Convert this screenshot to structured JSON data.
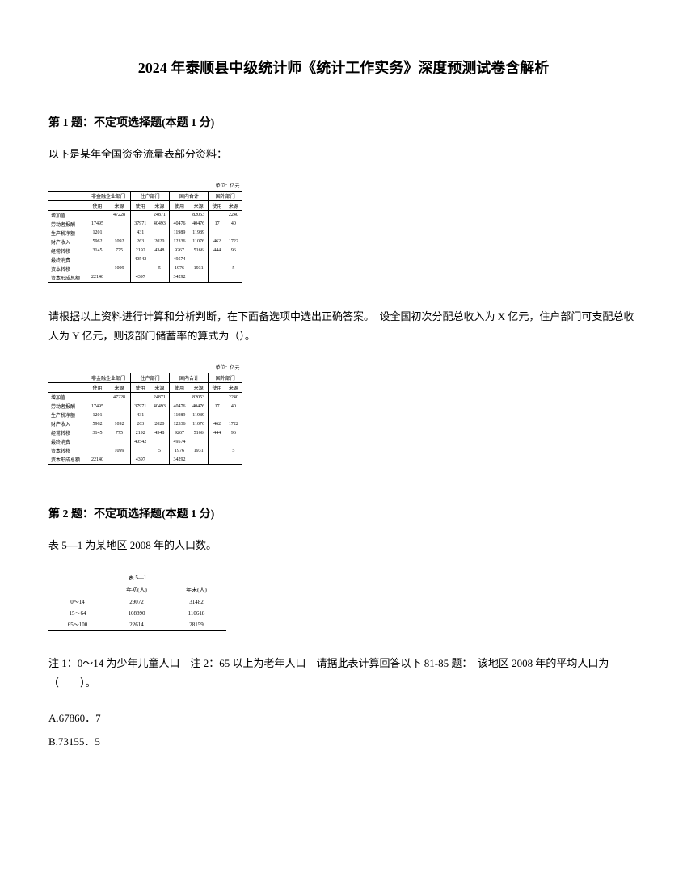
{
  "title": "2024 年泰顺县中级统计师《统计工作实务》深度预测试卷含解析",
  "q1": {
    "header": "第 1 题：不定项选择题(本题 1 分)",
    "intro": "以下是某年全国资金流量表部分资料：",
    "instruction": "请根据以上资料进行计算和分析判断，在下面备选项中选出正确答案。　设全国初次分配总收入为 X 亿元，住户部门可支配总收人为 Y 亿元，则该部门储蓄率的算式为（）。",
    "table": {
      "unit": "单位：亿元",
      "groups": [
        "非金融企业部门",
        "住户部门",
        "国内合计",
        "国外部门"
      ],
      "subheaders": [
        "使用",
        "来源",
        "使用",
        "来源",
        "使用",
        "来源",
        "使用",
        "来源"
      ],
      "rows": [
        {
          "label": "增加值",
          "cells": [
            "",
            "47228",
            "",
            "24871",
            "",
            "82053",
            "",
            "2240"
          ]
        },
        {
          "label": "劳动者报酬",
          "cells": [
            "17495",
            "",
            "37971",
            "40493",
            "40476",
            "40476",
            "17",
            "40"
          ]
        },
        {
          "label": "生产税净额",
          "cells": [
            "1201",
            "",
            "431",
            "",
            "11989",
            "11989",
            "",
            ""
          ]
        },
        {
          "label": "财产收入",
          "cells": [
            "5962",
            "1092",
            "263",
            "2020",
            "12336",
            "11076",
            "462",
            "1722"
          ]
        },
        {
          "label": "经常转移",
          "cells": [
            "3145",
            "775",
            "2192",
            "4348",
            "9267",
            "5166",
            "444",
            "96"
          ]
        },
        {
          "label": "最终消费",
          "cells": [
            "",
            "",
            "40542",
            "",
            "49574",
            "",
            "",
            ""
          ]
        },
        {
          "label": "资本转移",
          "cells": [
            "",
            "1099",
            "",
            "5",
            "1976",
            "1931",
            "",
            "5"
          ]
        },
        {
          "label": "资本形成总额",
          "cells": [
            "22140",
            "",
            "4397",
            "",
            "34292",
            "",
            "",
            ""
          ]
        }
      ]
    }
  },
  "q2": {
    "header": "第 2 题：不定项选择题(本题 1 分)",
    "intro": "表 5—1 为某地区 2008 年的人口数。",
    "table": {
      "caption": "表 5—1",
      "headers": [
        "",
        "年初(人)",
        "年末(人)"
      ],
      "rows": [
        {
          "label": "0～14",
          "cells": [
            "29072",
            "31482"
          ]
        },
        {
          "label": "15～64",
          "cells": [
            "108890",
            "110618"
          ]
        },
        {
          "label": "65～100",
          "cells": [
            "22614",
            "28159"
          ]
        }
      ]
    },
    "instruction": "注 1：0～14 为少年儿童人口　注 2：65 以上为老年人口　请据此表计算回答以下 81-85 题：　该地区 2008 年的平均人口为（　　）。",
    "options": {
      "a": "A.67860．7",
      "b": "B.73155．5"
    }
  },
  "colors": {
    "text": "#000000",
    "background": "#ffffff",
    "border": "#000000"
  }
}
